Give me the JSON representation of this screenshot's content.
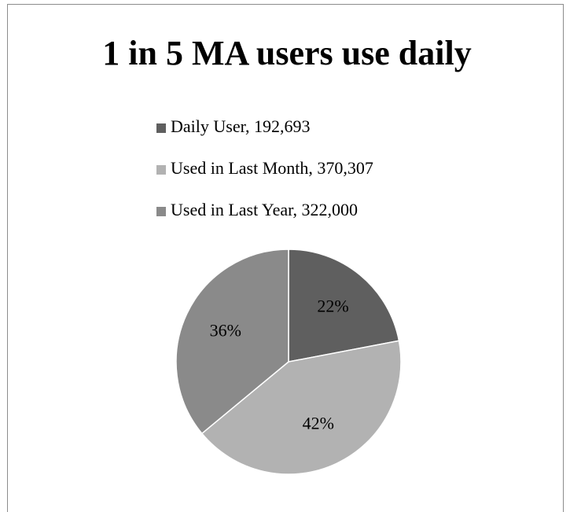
{
  "chart_data": {
    "type": "pie",
    "title": "1 in 5 MA users use daily",
    "categories": [
      "Daily User, 192,693",
      "Used in Last Month, 370,307",
      "Used in Last Year, 322,000"
    ],
    "values": [
      22,
      42,
      36
    ],
    "value_labels": [
      "22%",
      "42%",
      "36%"
    ],
    "colors": [
      "#5f5f5f",
      "#b2b2b2",
      "#8a8a8a"
    ]
  }
}
